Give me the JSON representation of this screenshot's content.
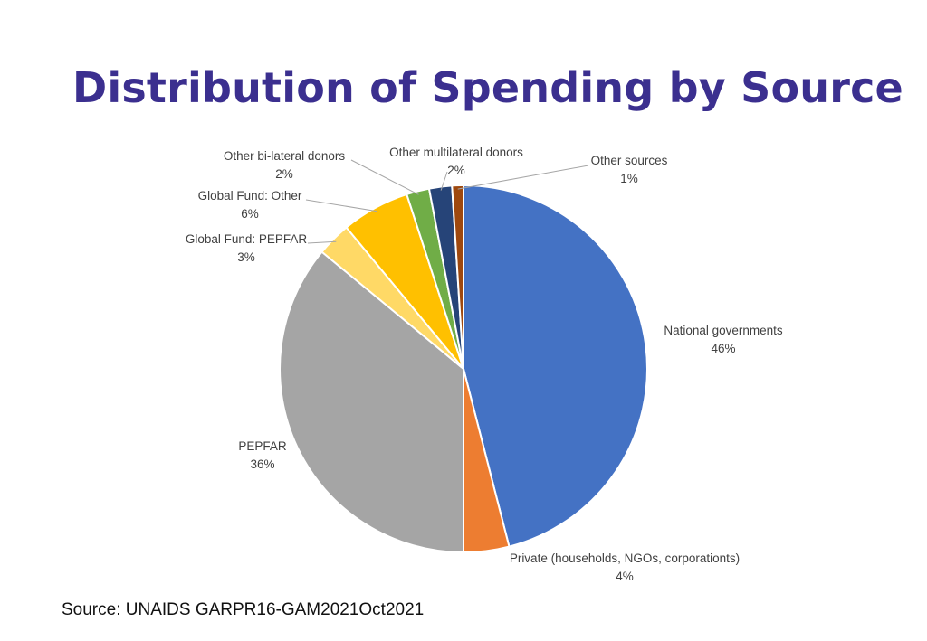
{
  "title": "Distribution of Spending by Source",
  "source": "Source: UNAIDS GARPR16-GAM2021Oct2021",
  "chart_data": {
    "type": "pie",
    "title": "Distribution of Spending by Source",
    "slices": [
      {
        "label": "National governments",
        "value": 46,
        "value_label": "46%",
        "color": "#4472c4"
      },
      {
        "label": "Private (households, NGOs, corporationts)",
        "value": 4,
        "value_label": "4%",
        "color": "#ed7d31"
      },
      {
        "label": "PEPFAR",
        "value": 36,
        "value_label": "36%",
        "color": "#a5a5a5"
      },
      {
        "label": "Global Fund: PEPFAR",
        "value": 3,
        "value_label": "3%",
        "color": "#ffd966"
      },
      {
        "label": "Global Fund: Other",
        "value": 6,
        "value_label": "6%",
        "color": "#ffc000"
      },
      {
        "label": "Other bi-lateral donors",
        "value": 2,
        "value_label": "2%",
        "color": "#70ad47"
      },
      {
        "label": "Other multilateral donors",
        "value": 2,
        "value_label": "2%",
        "color": "#264478"
      },
      {
        "label": "Other sources",
        "value": 1,
        "value_label": "1%",
        "color": "#9e480e"
      }
    ],
    "legend": "none",
    "data_labels": "outside with leader lines"
  }
}
